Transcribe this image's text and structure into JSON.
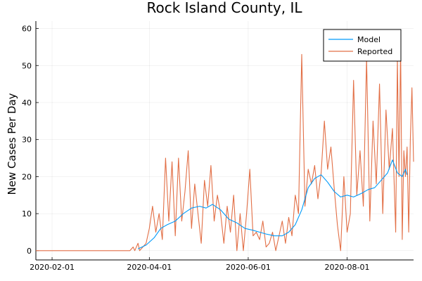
{
  "chart_data": {
    "type": "line",
    "title": "Rock Island County, IL",
    "xlabel": "",
    "ylabel": "New Cases Per Day",
    "x_type": "date",
    "xlim": [
      "2020-01-22",
      "2020-09-11"
    ],
    "ylim": [
      -2.5,
      62
    ],
    "x_ticks": [
      "2020-02-01",
      "2020-04-01",
      "2020-06-01",
      "2020-08-01"
    ],
    "y_ticks": [
      0,
      10,
      20,
      30,
      40,
      50,
      60
    ],
    "grid": true,
    "legend_position": "top-right",
    "series": [
      {
        "name": "Model",
        "color": "#009af9",
        "points": [
          [
            "2020-03-25",
            0.5
          ],
          [
            "2020-03-30",
            1.5
          ],
          [
            "2020-04-04",
            3.5
          ],
          [
            "2020-04-08",
            6.0
          ],
          [
            "2020-04-12",
            7.0
          ],
          [
            "2020-04-17",
            8.0
          ],
          [
            "2020-04-22",
            10.0
          ],
          [
            "2020-04-27",
            11.5
          ],
          [
            "2020-05-02",
            12.0
          ],
          [
            "2020-05-06",
            11.5
          ],
          [
            "2020-05-10",
            12.5
          ],
          [
            "2020-05-15",
            11.0
          ],
          [
            "2020-05-20",
            8.5
          ],
          [
            "2020-05-25",
            7.5
          ],
          [
            "2020-05-30",
            6.0
          ],
          [
            "2020-06-04",
            5.5
          ],
          [
            "2020-06-08",
            5.0
          ],
          [
            "2020-06-12",
            4.5
          ],
          [
            "2020-06-17",
            4.0
          ],
          [
            "2020-06-22",
            4.0
          ],
          [
            "2020-06-26",
            5.0
          ],
          [
            "2020-06-30",
            7.0
          ],
          [
            "2020-07-04",
            11.0
          ],
          [
            "2020-07-08",
            17.0
          ],
          [
            "2020-07-12",
            19.5
          ],
          [
            "2020-07-16",
            20.5
          ],
          [
            "2020-07-20",
            18.5
          ],
          [
            "2020-07-24",
            16.0
          ],
          [
            "2020-07-28",
            14.5
          ],
          [
            "2020-08-01",
            15.0
          ],
          [
            "2020-08-05",
            14.5
          ],
          [
            "2020-08-10",
            15.5
          ],
          [
            "2020-08-14",
            16.5
          ],
          [
            "2020-08-18",
            17.0
          ],
          [
            "2020-08-22",
            19.0
          ],
          [
            "2020-08-26",
            21.0
          ],
          [
            "2020-08-29",
            24.5
          ],
          [
            "2020-09-01",
            21.0
          ],
          [
            "2020-09-04",
            20.0
          ],
          [
            "2020-09-06",
            22.0
          ],
          [
            "2020-09-07",
            20.5
          ]
        ]
      },
      {
        "name": "Reported",
        "color": "#e26f46",
        "points": [
          [
            "2020-01-22",
            0
          ],
          [
            "2020-03-20",
            0
          ],
          [
            "2020-03-22",
            1
          ],
          [
            "2020-03-23",
            0
          ],
          [
            "2020-03-25",
            2
          ],
          [
            "2020-03-26",
            0
          ],
          [
            "2020-03-28",
            1
          ],
          [
            "2020-03-30",
            2
          ],
          [
            "2020-04-01",
            6
          ],
          [
            "2020-04-03",
            12
          ],
          [
            "2020-04-05",
            5
          ],
          [
            "2020-04-07",
            10
          ],
          [
            "2020-04-09",
            3
          ],
          [
            "2020-04-11",
            25
          ],
          [
            "2020-04-13",
            8
          ],
          [
            "2020-04-15",
            24
          ],
          [
            "2020-04-17",
            4
          ],
          [
            "2020-04-19",
            25
          ],
          [
            "2020-04-21",
            8
          ],
          [
            "2020-04-23",
            16
          ],
          [
            "2020-04-25",
            27
          ],
          [
            "2020-04-27",
            6
          ],
          [
            "2020-04-29",
            18
          ],
          [
            "2020-05-01",
            10
          ],
          [
            "2020-05-03",
            2
          ],
          [
            "2020-05-05",
            19
          ],
          [
            "2020-05-07",
            12
          ],
          [
            "2020-05-09",
            23
          ],
          [
            "2020-05-11",
            8
          ],
          [
            "2020-05-13",
            15
          ],
          [
            "2020-05-15",
            10
          ],
          [
            "2020-05-17",
            2
          ],
          [
            "2020-05-19",
            12
          ],
          [
            "2020-05-21",
            5
          ],
          [
            "2020-05-23",
            15
          ],
          [
            "2020-05-25",
            0
          ],
          [
            "2020-05-27",
            10
          ],
          [
            "2020-05-29",
            0
          ],
          [
            "2020-05-31",
            10
          ],
          [
            "2020-06-02",
            22
          ],
          [
            "2020-06-04",
            4
          ],
          [
            "2020-06-06",
            5
          ],
          [
            "2020-06-08",
            3
          ],
          [
            "2020-06-10",
            8
          ],
          [
            "2020-06-12",
            1
          ],
          [
            "2020-06-14",
            2
          ],
          [
            "2020-06-16",
            5
          ],
          [
            "2020-06-18",
            0
          ],
          [
            "2020-06-20",
            4
          ],
          [
            "2020-06-22",
            8
          ],
          [
            "2020-06-24",
            2
          ],
          [
            "2020-06-26",
            9
          ],
          [
            "2020-06-28",
            4
          ],
          [
            "2020-06-30",
            15
          ],
          [
            "2020-07-02",
            10
          ],
          [
            "2020-07-04",
            53
          ],
          [
            "2020-07-06",
            12
          ],
          [
            "2020-07-08",
            22
          ],
          [
            "2020-07-10",
            18
          ],
          [
            "2020-07-12",
            23
          ],
          [
            "2020-07-14",
            14
          ],
          [
            "2020-07-16",
            21
          ],
          [
            "2020-07-18",
            35
          ],
          [
            "2020-07-20",
            22
          ],
          [
            "2020-07-22",
            28
          ],
          [
            "2020-07-24",
            17
          ],
          [
            "2020-07-26",
            7
          ],
          [
            "2020-07-28",
            0
          ],
          [
            "2020-07-30",
            20
          ],
          [
            "2020-08-01",
            5
          ],
          [
            "2020-08-03",
            10
          ],
          [
            "2020-08-05",
            46
          ],
          [
            "2020-08-07",
            15
          ],
          [
            "2020-08-09",
            27
          ],
          [
            "2020-08-11",
            12
          ],
          [
            "2020-08-13",
            52
          ],
          [
            "2020-08-15",
            8
          ],
          [
            "2020-08-17",
            35
          ],
          [
            "2020-08-19",
            18
          ],
          [
            "2020-08-21",
            45
          ],
          [
            "2020-08-23",
            10
          ],
          [
            "2020-08-25",
            38
          ],
          [
            "2020-08-27",
            22
          ],
          [
            "2020-08-29",
            33
          ],
          [
            "2020-08-31",
            5
          ],
          [
            "2020-09-01",
            52
          ],
          [
            "2020-09-02",
            20
          ],
          [
            "2020-09-03",
            55
          ],
          [
            "2020-09-04",
            3
          ],
          [
            "2020-09-05",
            27
          ],
          [
            "2020-09-06",
            20
          ],
          [
            "2020-09-07",
            28
          ],
          [
            "2020-09-08",
            5
          ],
          [
            "2020-09-09",
            30
          ],
          [
            "2020-09-10",
            44
          ],
          [
            "2020-09-11",
            24
          ]
        ]
      }
    ]
  }
}
